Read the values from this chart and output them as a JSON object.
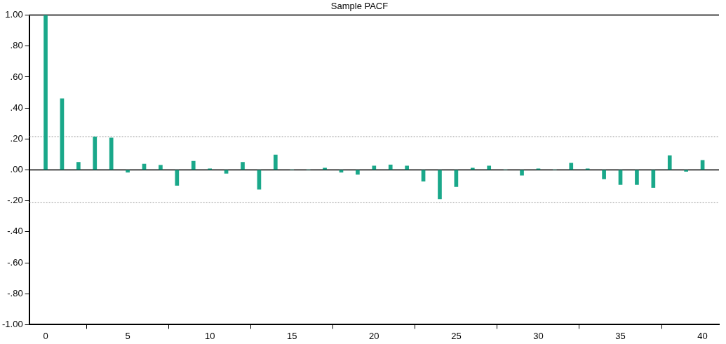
{
  "chart_data": {
    "type": "bar",
    "title": "Sample PACF",
    "x": [
      0,
      1,
      2,
      3,
      4,
      5,
      6,
      7,
      8,
      9,
      10,
      11,
      12,
      13,
      14,
      15,
      16,
      17,
      18,
      19,
      20,
      21,
      22,
      23,
      24,
      25,
      26,
      27,
      28,
      29,
      30,
      31,
      32,
      33,
      34,
      35,
      36,
      37,
      38,
      39,
      40
    ],
    "values": [
      1.0,
      0.46,
      0.049,
      0.213,
      0.207,
      -0.016,
      0.038,
      0.03,
      -0.1,
      0.056,
      0.008,
      -0.022,
      0.049,
      -0.125,
      0.097,
      0,
      0,
      0.012,
      -0.016,
      -0.029,
      0.026,
      0.032,
      0.026,
      -0.073,
      -0.187,
      -0.108,
      0.012,
      0.026,
      0,
      -0.035,
      0.008,
      0,
      0.044,
      0.008,
      -0.059,
      -0.095,
      -0.095,
      -0.114,
      0.093,
      -0.01,
      0.062
    ],
    "color": "#1aa88a",
    "xlim": [
      -1,
      41
    ],
    "xticks": [
      0,
      5,
      10,
      15,
      20,
      25,
      30,
      35,
      40
    ],
    "ylim": [
      -1,
      1
    ],
    "yticks": [
      {
        "value": -1,
        "label": "-1.00"
      },
      {
        "value": -0.8,
        "label": "-.80"
      },
      {
        "value": -0.6,
        "label": "-.60"
      },
      {
        "value": -0.4,
        "label": "-.40"
      },
      {
        "value": -0.2,
        "label": "-.20"
      },
      {
        "value": 0,
        "label": ".00"
      },
      {
        "value": 0.2,
        "label": ".20"
      },
      {
        "value": 0.4,
        "label": ".40"
      },
      {
        "value": 0.6,
        "label": ".60"
      },
      {
        "value": 0.8,
        "label": ".80"
      },
      {
        "value": 1,
        "label": "1.00"
      }
    ],
    "ref_lines": [
      {
        "axis": "y",
        "value": 0.215,
        "label": null,
        "color": "#999999",
        "line_style": "dotted"
      },
      {
        "axis": "y",
        "value": -0.212,
        "label": null,
        "color": "#999999",
        "line_style": "dotted"
      },
      {
        "axis": "y",
        "value": 0,
        "label": null,
        "color": "#000000",
        "line_style": "solid"
      }
    ],
    "grid": false,
    "legend": false
  }
}
